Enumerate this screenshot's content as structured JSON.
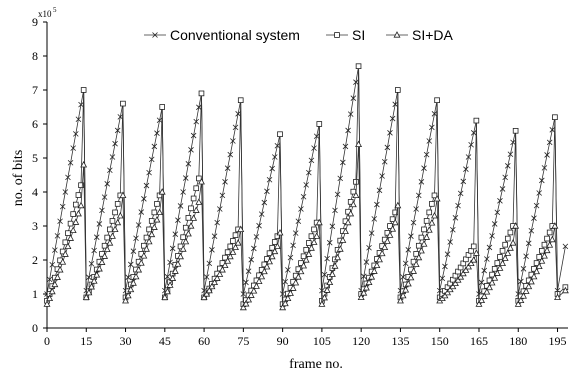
{
  "chart_data": {
    "type": "line",
    "xlabel": "frame no.",
    "ylabel": "no. of bits",
    "y_multiplier": "x10",
    "y_multiplier_exp": "5",
    "xlim": [
      0,
      199
    ],
    "ylim": [
      0,
      9
    ],
    "x_ticks": [
      "0",
      "15",
      "30",
      "45",
      "60",
      "75",
      "90",
      "105",
      "120",
      "135",
      "150",
      "165",
      "180",
      "195"
    ],
    "y_ticks": [
      "0",
      "1",
      "2",
      "3",
      "4",
      "5",
      "6",
      "7",
      "8",
      "9"
    ],
    "legend_position": "top-center",
    "grid": false,
    "cycle_length": 15,
    "series": [
      {
        "name": "Conventional system",
        "marker": "x",
        "start": [
          0,
          1.0
        ],
        "cycles": [
          {
            "start": 0,
            "low": 1.0,
            "peak": 7.0
          },
          {
            "start": 15,
            "low": 1.1,
            "peak": 6.6
          },
          {
            "start": 30,
            "low": 1.1,
            "peak": 6.5
          },
          {
            "start": 45,
            "low": 1.1,
            "peak": 6.9
          },
          {
            "start": 60,
            "low": 1.1,
            "peak": 6.7
          },
          {
            "start": 75,
            "low": 1.0,
            "peak": 5.7
          },
          {
            "start": 90,
            "low": 1.0,
            "peak": 6.0
          },
          {
            "start": 105,
            "low": 1.1,
            "peak": 7.7
          },
          {
            "start": 120,
            "low": 1.1,
            "peak": 7.0
          },
          {
            "start": 135,
            "low": 1.1,
            "peak": 6.7
          },
          {
            "start": 150,
            "low": 1.1,
            "peak": 6.1
          },
          {
            "start": 165,
            "low": 1.0,
            "peak": 5.8
          },
          {
            "start": 180,
            "low": 1.0,
            "peak": 6.2
          }
        ],
        "tail": [
          [
            195,
            1.1
          ],
          [
            198,
            2.4
          ]
        ]
      },
      {
        "name": "SI",
        "marker": "square",
        "cycles": [
          {
            "start": 0,
            "low": 0.8,
            "peak": 7.0,
            "pre": 4.2
          },
          {
            "start": 15,
            "low": 0.9,
            "peak": 6.6,
            "pre": 3.9
          },
          {
            "start": 30,
            "low": 0.9,
            "peak": 6.5,
            "pre": 3.9
          },
          {
            "start": 45,
            "low": 0.9,
            "peak": 6.9,
            "pre": 4.4
          },
          {
            "start": 60,
            "low": 0.9,
            "peak": 6.7,
            "pre": 2.9
          },
          {
            "start": 75,
            "low": 0.7,
            "peak": 5.7,
            "pre": 2.7
          },
          {
            "start": 90,
            "low": 0.7,
            "peak": 6.0,
            "pre": 3.1
          },
          {
            "start": 105,
            "low": 0.8,
            "peak": 7.7,
            "pre": 4.3
          },
          {
            "start": 120,
            "low": 1.0,
            "peak": 7.0,
            "pre": 3.4
          },
          {
            "start": 135,
            "low": 0.9,
            "peak": 6.7,
            "pre": 3.9
          },
          {
            "start": 150,
            "low": 0.9,
            "peak": 6.1,
            "pre": 2.4
          },
          {
            "start": 165,
            "low": 0.8,
            "peak": 5.8,
            "pre": 3.0
          },
          {
            "start": 180,
            "low": 0.8,
            "peak": 6.2,
            "pre": 3.0
          }
        ],
        "tail": [
          [
            195,
            1.0
          ],
          [
            198,
            1.2
          ]
        ]
      },
      {
        "name": "SI+DA",
        "marker": "triangle",
        "cycles": [
          {
            "start": 0,
            "low": 0.7,
            "peak": 4.8,
            "pre": 3.6
          },
          {
            "start": 15,
            "low": 0.9,
            "peak": 3.9,
            "pre": 3.3
          },
          {
            "start": 30,
            "low": 0.8,
            "peak": 4.0,
            "pre": 3.4
          },
          {
            "start": 45,
            "low": 0.9,
            "peak": 4.3,
            "pre": 3.7
          },
          {
            "start": 60,
            "low": 0.9,
            "peak": 2.9,
            "pre": 2.5
          },
          {
            "start": 75,
            "low": 0.6,
            "peak": 2.8,
            "pre": 2.4
          },
          {
            "start": 90,
            "low": 0.6,
            "peak": 3.1,
            "pre": 2.7
          },
          {
            "start": 105,
            "low": 0.7,
            "peak": 5.4,
            "pre": 3.9
          },
          {
            "start": 120,
            "low": 0.9,
            "peak": 3.6,
            "pre": 3.1
          },
          {
            "start": 135,
            "low": 0.8,
            "peak": 3.8,
            "pre": 3.3
          },
          {
            "start": 150,
            "low": 0.8,
            "peak": 2.2,
            "pre": 2.0
          },
          {
            "start": 165,
            "low": 0.7,
            "peak": 3.0,
            "pre": 2.5
          },
          {
            "start": 180,
            "low": 0.7,
            "peak": 3.0,
            "pre": 2.6
          }
        ],
        "tail": [
          [
            195,
            0.9
          ],
          [
            198,
            1.1
          ]
        ]
      }
    ]
  }
}
